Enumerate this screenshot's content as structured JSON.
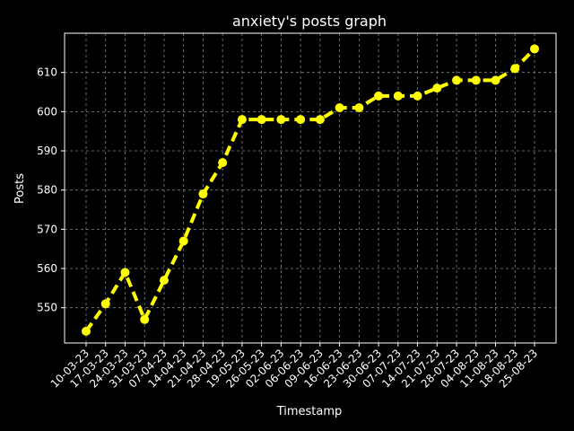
{
  "chart_data": {
    "type": "line",
    "title": "anxiety's posts graph",
    "xlabel": "Timestamp",
    "ylabel": "Posts",
    "categories": [
      "10-03-23",
      "17-03-23",
      "24-03-23",
      "31-03-23",
      "07-04-23",
      "14-04-23",
      "21-04-23",
      "28-04-23",
      "19-05-23",
      "26-05-23",
      "02-06-23",
      "06-06-23",
      "09-06-23",
      "16-06-23",
      "23-06-23",
      "30-06-23",
      "07-07-23",
      "14-07-23",
      "21-07-23",
      "28-07-23",
      "04-08-23",
      "11-08-23",
      "18-08-23",
      "25-08-23"
    ],
    "values": [
      544,
      551,
      559,
      547,
      557,
      567,
      579,
      587,
      598,
      598,
      598,
      598,
      598,
      601,
      601,
      604,
      604,
      604,
      606,
      608,
      608,
      608,
      611,
      616
    ],
    "yticks": [
      550,
      560,
      570,
      580,
      590,
      600,
      610
    ],
    "ylim": [
      541,
      620
    ],
    "grid": true,
    "colors": {
      "background": "#000000",
      "line": "#ffff00",
      "grid": "#808080",
      "text": "#ffffff"
    }
  }
}
